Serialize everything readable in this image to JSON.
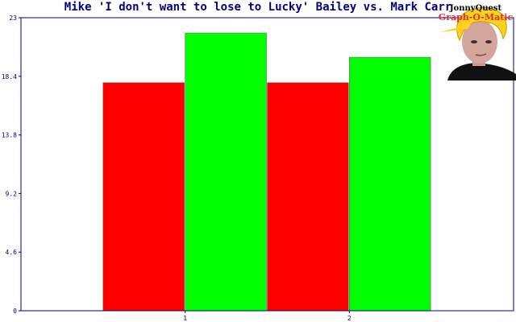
{
  "colors": {
    "title": "#000080",
    "axis": "#000080",
    "tick_text": "#000080",
    "logo_accent": "#e03030"
  },
  "logo": {
    "line1": "JonnyQuest",
    "line2": "Graph-O-Matic"
  },
  "chart_data": {
    "type": "bar",
    "title": "Mike 'I don't want to lose to Lucky' Bailey vs. Mark Carr",
    "xlabel": "",
    "ylabel": "",
    "categories": [
      "1",
      "2"
    ],
    "series": [
      {
        "color": "#ff0000",
        "values": [
          17.9,
          17.9
        ]
      },
      {
        "color": "#00ff00",
        "values": [
          21.8,
          19.9
        ]
      }
    ],
    "ylim": [
      0,
      23
    ],
    "yticks": [
      "0",
      "4.6",
      "9.2",
      "13.8",
      "18.4",
      "23"
    ],
    "grid": false,
    "legend": "none"
  }
}
